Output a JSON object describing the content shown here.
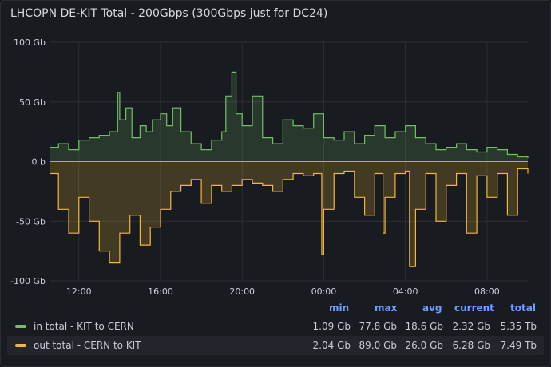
{
  "panel": {
    "title": "LHCOPN DE-KIT Total - 200Gbps (300Gbps just for DC24)"
  },
  "colors": {
    "in": "#73bf69",
    "out": "#fade2a",
    "out_line": "#f2b73a",
    "grid": "#2c2f36",
    "axis_text": "#ccccdc",
    "header": "#6e9fff"
  },
  "legend": {
    "headers": [
      "min",
      "max",
      "avg",
      "current",
      "total"
    ],
    "rows": [
      {
        "name": "in total - KIT to CERN",
        "min": "1.09 Gb",
        "max": "77.8 Gb",
        "avg": "18.6 Gb",
        "current": "2.32 Gb",
        "total": "5.35 Tb"
      },
      {
        "name": "out total - CERN to KIT",
        "min": "2.04 Gb",
        "max": "89.0 Gb",
        "avg": "26.0 Gb",
        "current": "6.28 Gb",
        "total": "7.49 Tb"
      }
    ]
  },
  "chart_data": {
    "type": "area",
    "y_ticks": [
      "100 Gb",
      "50 Gb",
      "0 b",
      "-50 Gb",
      "-100 Gb"
    ],
    "y_tick_values": [
      100,
      50,
      0,
      -50,
      -100
    ],
    "x_ticks": [
      "12:00",
      "16:00",
      "20:00",
      "00:00",
      "04:00",
      "08:00"
    ],
    "x_tick_hours": [
      12,
      16,
      20,
      24,
      28,
      32
    ],
    "xlim_hours": [
      10.6,
      34.0
    ],
    "ylim": [
      -100,
      100
    ],
    "grid": true,
    "series": [
      {
        "name": "in total - KIT to CERN",
        "x": [
          10.6,
          11.0,
          11.5,
          12.0,
          12.5,
          13.0,
          13.5,
          13.9,
          14.0,
          14.3,
          14.6,
          15.0,
          15.3,
          15.6,
          16.0,
          16.3,
          16.6,
          17.0,
          17.5,
          18.0,
          18.5,
          19.0,
          19.2,
          19.5,
          19.7,
          20.0,
          20.5,
          21.0,
          21.5,
          22.0,
          22.5,
          23.0,
          23.5,
          24.0,
          24.5,
          25.0,
          25.5,
          26.0,
          26.5,
          27.0,
          27.5,
          28.0,
          28.5,
          29.0,
          29.5,
          30.0,
          30.5,
          31.0,
          31.5,
          32.0,
          32.5,
          33.0,
          33.5,
          34.0
        ],
        "values": [
          12,
          15,
          10,
          18,
          20,
          22,
          25,
          58,
          35,
          45,
          20,
          30,
          25,
          35,
          40,
          30,
          45,
          25,
          15,
          10,
          18,
          25,
          55,
          75,
          40,
          30,
          55,
          20,
          15,
          35,
          30,
          28,
          40,
          20,
          18,
          25,
          15,
          22,
          30,
          20,
          25,
          30,
          20,
          15,
          10,
          12,
          15,
          10,
          8,
          12,
          10,
          6,
          4,
          3
        ]
      },
      {
        "name": "out total - CERN to KIT",
        "x": [
          10.6,
          11.0,
          11.5,
          12.0,
          12.5,
          13.0,
          13.5,
          14.0,
          14.5,
          15.0,
          15.5,
          16.0,
          16.5,
          17.0,
          17.5,
          18.0,
          18.5,
          19.0,
          19.5,
          20.0,
          20.5,
          21.0,
          21.5,
          22.0,
          22.5,
          23.0,
          23.5,
          23.9,
          24.0,
          24.5,
          25.0,
          25.5,
          26.0,
          26.5,
          26.9,
          27.0,
          27.5,
          28.0,
          28.2,
          28.5,
          29.0,
          29.5,
          30.0,
          30.5,
          31.0,
          31.5,
          32.0,
          32.5,
          33.0,
          33.5,
          34.0
        ],
        "values": [
          -10,
          -40,
          -60,
          -30,
          -50,
          -75,
          -85,
          -60,
          -45,
          -70,
          -55,
          -40,
          -25,
          -20,
          -15,
          -35,
          -20,
          -25,
          -20,
          -15,
          -18,
          -20,
          -25,
          -15,
          -10,
          -12,
          -10,
          -78,
          -40,
          -10,
          -8,
          -30,
          -45,
          -10,
          -60,
          -30,
          -10,
          -8,
          -88,
          -40,
          -10,
          -50,
          -20,
          -10,
          -60,
          -12,
          -30,
          -10,
          -45,
          -6,
          -10
        ]
      }
    ]
  }
}
